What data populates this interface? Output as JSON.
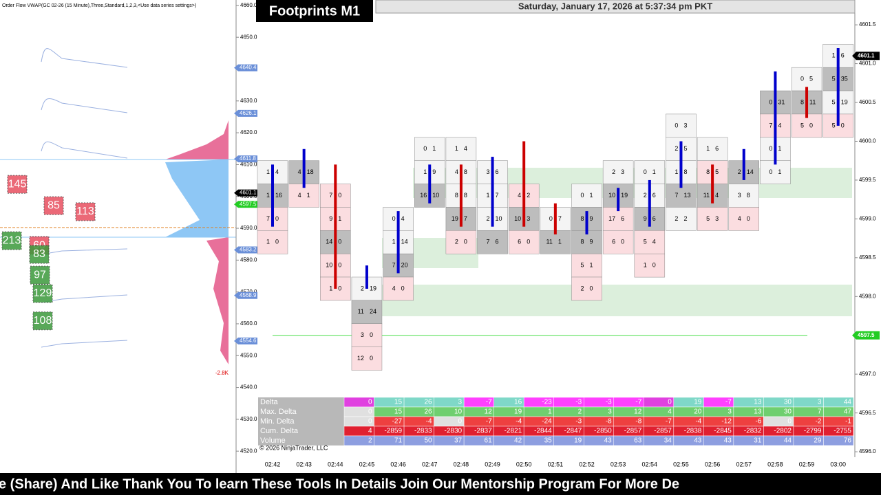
{
  "left_panel": {
    "header": "Order Flow VWAP(GC 02-26 (15 Minute),Three,Standard,1,2,3,<Use data series settings>)",
    "ylim": [
      4518.1,
      4661.7
    ],
    "ticks": [
      {
        "value": 4660,
        "label": "4660.0"
      },
      {
        "value": 4650,
        "label": "4650.0"
      },
      {
        "value": 4640,
        "label": "4640.0"
      },
      {
        "value": 4630,
        "label": "4630.0"
      },
      {
        "value": 4620,
        "label": "4620.0"
      },
      {
        "value": 4610,
        "label": "4610.0"
      },
      {
        "value": 4600,
        "label": "4600.0"
      },
      {
        "value": 4590,
        "label": "4590.0"
      },
      {
        "value": 4580,
        "label": "4580.0"
      },
      {
        "value": 4570,
        "label": "4570.0"
      },
      {
        "value": 4560,
        "label": "4560.0"
      },
      {
        "value": 4550,
        "label": "4550.0"
      },
      {
        "value": 4540,
        "label": "4540.0"
      },
      {
        "value": 4530,
        "label": "4530.0"
      },
      {
        "value": 4520,
        "label": "4520.0"
      }
    ],
    "markers": [
      {
        "value": 4640.4,
        "label": "4640.4",
        "color": "#6a8fd8"
      },
      {
        "value": 4626.1,
        "label": "4626.1",
        "color": "#6a8fd8"
      },
      {
        "value": 4611.8,
        "label": "4611.8",
        "color": "#6a8fd8"
      },
      {
        "value": 4601.1,
        "label": "4601.1",
        "color": "#000000"
      },
      {
        "value": 4597.5,
        "label": "4597.5",
        "color": "#22cc22"
      },
      {
        "value": 4583.2,
        "label": "4583.2",
        "color": "#6a8fd8"
      },
      {
        "value": 4568.9,
        "label": "4568.9",
        "color": "#6a8fd8"
      },
      {
        "value": 4554.6,
        "label": "4554.6",
        "color": "#6a8fd8"
      }
    ],
    "profile_label": "-2.8K",
    "bubbles": [
      {
        "label": "145",
        "price": 4603.8,
        "color": "#e85060"
      },
      {
        "label": "85",
        "price": 4597.1,
        "color": "#e85060"
      },
      {
        "label": "113",
        "price": 4595.2,
        "color": "#e85060"
      },
      {
        "label": "213",
        "price": 4586.1,
        "color": "#3c9a3c"
      },
      {
        "label": "60",
        "price": 4584.6,
        "color": "#e85060"
      },
      {
        "label": "83",
        "price": 4581.8,
        "color": "#3c9a3c"
      },
      {
        "label": "97",
        "price": 4575.3,
        "color": "#3c9a3c"
      },
      {
        "label": "129",
        "price": 4569.5,
        "color": "#3c9a3c"
      },
      {
        "label": "108",
        "price": 4560.9,
        "color": "#3c9a3c"
      }
    ]
  },
  "title": "Footprints M1",
  "datetime": "Saturday, January 17, 2026 at 5:37:34 pm PKT",
  "right_axis": {
    "ylim": [
      4595.93,
      4601.82
    ],
    "ticks": [
      {
        "value": 4601.5,
        "label": "4601.5"
      },
      {
        "value": 4601,
        "label": "4601.0"
      },
      {
        "value": 4600.5,
        "label": "4600.5"
      },
      {
        "value": 4600,
        "label": "4600.0"
      },
      {
        "value": 4599.5,
        "label": "4599.5"
      },
      {
        "value": 4599,
        "label": "4599.0"
      },
      {
        "value": 4598.5,
        "label": "4598.5"
      },
      {
        "value": 4598,
        "label": "4598.0"
      },
      {
        "value": 4597.5,
        "label": "4597.5"
      },
      {
        "value": 4597,
        "label": "4597.0"
      },
      {
        "value": 4596.5,
        "label": "4596.5"
      },
      {
        "value": 4596,
        "label": "4596.0"
      }
    ],
    "last_price": {
      "value": 4601.1,
      "label": "4601.1"
    },
    "vwap_price": {
      "value": 4597.5,
      "label": "4597.5"
    }
  },
  "candles": [
    {
      "time": "02:42",
      "open": 4598.9,
      "close": 4599.7,
      "color": "#0000cc",
      "cells": [
        {
          "price": 4599.6,
          "bid": 1,
          "ask": 4
        },
        {
          "price": 4599.3,
          "bid": 1,
          "ask": 16
        },
        {
          "price": 4599.0,
          "bid": 7,
          "ask": 0
        },
        {
          "price": 4598.7,
          "bid": 1,
          "ask": 0
        }
      ]
    },
    {
      "time": "02:43",
      "open": 4599.4,
      "close": 4599.9,
      "color": "#0000cc",
      "cells": [
        {
          "price": 4599.6,
          "bid": 4,
          "ask": 18
        },
        {
          "price": 4599.3,
          "bid": 4,
          "ask": 1
        }
      ]
    },
    {
      "time": "02:44",
      "open": 4599.7,
      "close": 4598.1,
      "color": "#cc0000",
      "cells": [
        {
          "price": 4599.3,
          "bid": 7,
          "ask": 0
        },
        {
          "price": 4599.0,
          "bid": 9,
          "ask": 1
        },
        {
          "price": 4598.7,
          "bid": 14,
          "ask": 0
        },
        {
          "price": 4598.4,
          "bid": 10,
          "ask": 0
        },
        {
          "price": 4598.1,
          "bid": 1,
          "ask": 0
        }
      ]
    },
    {
      "time": "02:45",
      "open": 4598.1,
      "close": 4598.4,
      "color": "#0000cc",
      "cells": [
        {
          "price": 4598.1,
          "bid": 2,
          "ask": 19
        },
        {
          "price": 4597.8,
          "bid": 11,
          "ask": 24
        },
        {
          "price": 4597.5,
          "bid": 3,
          "ask": 0
        },
        {
          "price": 4597.2,
          "bid": 12,
          "ask": 0
        }
      ]
    },
    {
      "time": "02:46",
      "open": 4598.3,
      "close": 4599.1,
      "color": "#0000cc",
      "cells": [
        {
          "price": 4599.0,
          "bid": 0,
          "ask": 4
        },
        {
          "price": 4598.7,
          "bid": 1,
          "ask": 14
        },
        {
          "price": 4598.4,
          "bid": 7,
          "ask": 20
        },
        {
          "price": 4598.1,
          "bid": 4,
          "ask": 0
        }
      ]
    },
    {
      "time": "02:47",
      "open": 4599.2,
      "close": 4599.7,
      "color": "#0000cc",
      "cells": [
        {
          "price": 4599.9,
          "bid": 0,
          "ask": 1
        },
        {
          "price": 4599.6,
          "bid": 1,
          "ask": 9
        },
        {
          "price": 4599.3,
          "bid": 16,
          "ask": 10
        }
      ]
    },
    {
      "time": "02:48",
      "open": 4599.7,
      "close": 4598.9,
      "color": "#cc0000",
      "cells": [
        {
          "price": 4599.9,
          "bid": 1,
          "ask": 4
        },
        {
          "price": 4599.6,
          "bid": 4,
          "ask": 8
        },
        {
          "price": 4599.3,
          "bid": 8,
          "ask": 8
        },
        {
          "price": 4599.0,
          "bid": 19,
          "ask": 7
        },
        {
          "price": 4598.7,
          "bid": 2,
          "ask": 0
        }
      ]
    },
    {
      "time": "02:49",
      "open": 4598.9,
      "close": 4599.8,
      "color": "#0000cc",
      "cells": [
        {
          "price": 4599.6,
          "bid": 3,
          "ask": 6
        },
        {
          "price": 4599.3,
          "bid": 1,
          "ask": 7
        },
        {
          "price": 4599.0,
          "bid": 2,
          "ask": 10
        },
        {
          "price": 4598.7,
          "bid": 7,
          "ask": 6
        }
      ]
    },
    {
      "time": "02:50",
      "open": 4600.0,
      "close": 4598.9,
      "color": "#cc0000",
      "cells": [
        {
          "price": 4599.3,
          "bid": 4,
          "ask": 2
        },
        {
          "price": 4599.0,
          "bid": 10,
          "ask": 3
        },
        {
          "price": 4598.7,
          "bid": 6,
          "ask": 0
        }
      ]
    },
    {
      "time": "02:51",
      "open": 4599.2,
      "close": 4598.8,
      "color": "#cc0000",
      "cells": [
        {
          "price": 4599.0,
          "bid": 0,
          "ask": 7
        },
        {
          "price": 4598.7,
          "bid": 11,
          "ask": 1
        }
      ]
    },
    {
      "time": "02:52",
      "open": 4598.8,
      "close": 4599.1,
      "color": "#0000cc",
      "cells": [
        {
          "price": 4599.3,
          "bid": 0,
          "ask": 1
        },
        {
          "price": 4599.0,
          "bid": 8,
          "ask": 9
        },
        {
          "price": 4598.7,
          "bid": 8,
          "ask": 9
        },
        {
          "price": 4598.4,
          "bid": 5,
          "ask": 1
        },
        {
          "price": 4598.1,
          "bid": 2,
          "ask": 0
        }
      ]
    },
    {
      "time": "02:53",
      "open": 4599.1,
      "close": 4599.4,
      "color": "#0000cc",
      "cells": [
        {
          "price": 4599.6,
          "bid": 2,
          "ask": 3
        },
        {
          "price": 4599.3,
          "bid": 10,
          "ask": 19
        },
        {
          "price": 4599.0,
          "bid": 17,
          "ask": 6
        },
        {
          "price": 4598.7,
          "bid": 6,
          "ask": 0
        }
      ]
    },
    {
      "time": "02:54",
      "open": 4598.9,
      "close": 4599.5,
      "color": "#0000cc",
      "cells": [
        {
          "price": 4599.6,
          "bid": 0,
          "ask": 1
        },
        {
          "price": 4599.3,
          "bid": 2,
          "ask": 6
        },
        {
          "price": 4599.0,
          "bid": 9,
          "ask": 6
        },
        {
          "price": 4598.7,
          "bid": 5,
          "ask": 4
        },
        {
          "price": 4598.4,
          "bid": 1,
          "ask": 0
        }
      ]
    },
    {
      "time": "02:55",
      "open": 4599.4,
      "close": 4600.0,
      "color": "#0000cc",
      "cells": [
        {
          "price": 4600.2,
          "bid": 0,
          "ask": 3
        },
        {
          "price": 4599.9,
          "bid": 2,
          "ask": 5
        },
        {
          "price": 4599.6,
          "bid": 1,
          "ask": 8
        },
        {
          "price": 4599.3,
          "bid": 7,
          "ask": 13
        },
        {
          "price": 4599.0,
          "bid": 2,
          "ask": 2
        }
      ]
    },
    {
      "time": "02:56",
      "open": 4599.7,
      "close": 4599.2,
      "color": "#cc0000",
      "cells": [
        {
          "price": 4599.9,
          "bid": 1,
          "ask": 6
        },
        {
          "price": 4599.6,
          "bid": 8,
          "ask": 5
        },
        {
          "price": 4599.3,
          "bid": 11,
          "ask": 4
        },
        {
          "price": 4599.0,
          "bid": 5,
          "ask": 3
        }
      ]
    },
    {
      "time": "02:57",
      "open": 4599.5,
      "close": 4599.9,
      "color": "#0000cc",
      "cells": [
        {
          "price": 4599.6,
          "bid": 2,
          "ask": 14
        },
        {
          "price": 4599.3,
          "bid": 3,
          "ask": 8
        },
        {
          "price": 4599.0,
          "bid": 4,
          "ask": 0
        }
      ]
    },
    {
      "time": "02:58",
      "open": 4599.7,
      "close": 4600.9,
      "color": "#0000cc",
      "cells": [
        {
          "price": 4600.5,
          "bid": 0,
          "ask": 31
        },
        {
          "price": 4600.2,
          "bid": 7,
          "ask": 4
        },
        {
          "price": 4599.9,
          "bid": 0,
          "ask": 1
        },
        {
          "price": 4599.6,
          "bid": 0,
          "ask": 1
        }
      ]
    },
    {
      "time": "02:59",
      "open": 4600.3,
      "close": 4600.7,
      "color": "#cc0000",
      "cells": [
        {
          "price": 4600.8,
          "bid": 0,
          "ask": 5
        },
        {
          "price": 4600.5,
          "bid": 8,
          "ask": 11
        },
        {
          "price": 4600.2,
          "bid": 5,
          "ask": 0
        }
      ]
    },
    {
      "time": "03:00",
      "open": 4600.2,
      "close": 4601.2,
      "color": "#0000cc",
      "cells": [
        {
          "price": 4601.1,
          "bid": 1,
          "ask": 6
        },
        {
          "price": 4600.8,
          "bid": 5,
          "ask": 35
        },
        {
          "price": 4600.5,
          "bid": 5,
          "ask": 19
        },
        {
          "price": 4600.2,
          "bid": 5,
          "ask": 0
        }
      ]
    }
  ],
  "stats": [
    {
      "name": "Delta",
      "values": [
        0,
        15,
        26,
        3,
        -7,
        16,
        -23,
        -3,
        -3,
        -7,
        0,
        19,
        -7,
        13,
        30,
        3,
        44
      ]
    },
    {
      "name": "Max. Delta",
      "values": [
        0,
        15,
        26,
        10,
        12,
        19,
        1,
        2,
        3,
        12,
        4,
        20,
        3,
        13,
        30,
        7,
        47
      ]
    },
    {
      "name": "Min. Delta",
      "values": [
        0,
        -27,
        -4,
        0,
        -7,
        -4,
        -24,
        -3,
        -8,
        -8,
        -7,
        -4,
        -12,
        -6,
        0,
        -2,
        -1
      ]
    },
    {
      "name": "Cum. Delta",
      "values": [
        4,
        -2859,
        -2833,
        -2830,
        -2837,
        -2821,
        -2844,
        -2847,
        -2850,
        -2857,
        -2857,
        -2838,
        -2845,
        -2832,
        -2802,
        -2799,
        -2755
      ]
    },
    {
      "name": "Volume",
      "values": [
        2,
        71,
        50,
        37,
        61,
        42,
        35,
        19,
        43,
        63,
        34,
        43,
        43,
        31,
        44,
        29,
        76
      ]
    }
  ],
  "copyright": "© 2026 NinjaTrader, LLC",
  "banner": "e (Share) And Like Thank You To learn These Tools In Details Join Our Mentorship Program For More De"
}
